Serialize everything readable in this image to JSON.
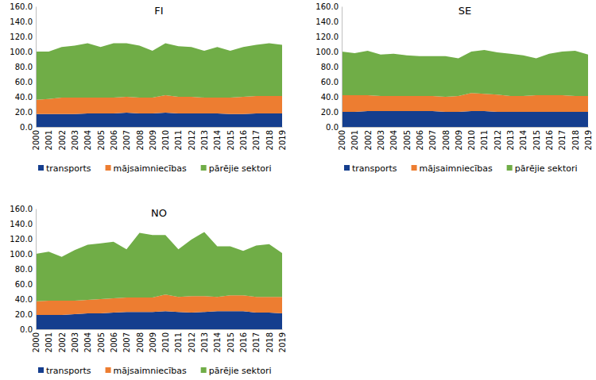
{
  "chart_data": [
    {
      "type": "area",
      "stacked": true,
      "title": "FI",
      "grid": false,
      "legend": "bottom",
      "categories": [
        "2000",
        "2001",
        "2002",
        "2003",
        "2004",
        "2005",
        "2006",
        "2007",
        "2008",
        "2009",
        "2010",
        "2011",
        "2012",
        "2013",
        "2014",
        "2015",
        "2016",
        "2017",
        "2018",
        "2019"
      ],
      "ylim": [
        0,
        160
      ],
      "yticks": [
        {
          "value": 0,
          "label": "0.0"
        },
        {
          "value": 20,
          "label": "20.0"
        },
        {
          "value": 40,
          "label": "40.0"
        },
        {
          "value": 60,
          "label": "60.0"
        },
        {
          "value": 80,
          "label": "80.0"
        },
        {
          "value": 100,
          "label": "100.0"
        },
        {
          "value": 120,
          "label": "120.0"
        },
        {
          "value": 140,
          "label": "140.0"
        },
        {
          "value": 160,
          "label": "160.0"
        }
      ],
      "series": [
        {
          "name": "transports",
          "color": "#153e8e",
          "values": [
            17,
            17,
            17,
            17,
            18,
            18,
            18,
            19,
            18,
            18,
            19,
            18,
            18,
            18,
            18,
            17,
            17,
            18,
            18,
            18
          ]
        },
        {
          "name": "mājsaimniecības",
          "color": "#ed7d31",
          "values": [
            19,
            20,
            22,
            22,
            21,
            21,
            21,
            21,
            21,
            21,
            23,
            22,
            22,
            21,
            21,
            22,
            23,
            23,
            23,
            23
          ]
        },
        {
          "name": "pārējie sektori",
          "color": "#70ad47",
          "values": [
            64,
            63,
            67,
            69,
            72,
            67,
            72,
            71,
            69,
            62,
            69,
            67,
            66,
            62,
            67,
            62,
            66,
            68,
            70,
            68
          ]
        }
      ]
    },
    {
      "type": "area",
      "stacked": true,
      "title": "SE",
      "grid": false,
      "legend": "bottom",
      "categories": [
        "2000",
        "2001",
        "2002",
        "2003",
        "2004",
        "2005",
        "2006",
        "2007",
        "2008",
        "2009",
        "2010",
        "2011",
        "2012",
        "2013",
        "2014",
        "2015",
        "2016",
        "2017",
        "2018",
        "2019"
      ],
      "ylim": [
        0,
        160
      ],
      "yticks": [
        {
          "value": 0,
          "label": "0.0"
        },
        {
          "value": 20,
          "label": "20.0"
        },
        {
          "value": 40,
          "label": "40.0"
        },
        {
          "value": 60,
          "label": "60.0"
        },
        {
          "value": 80,
          "label": "80.0"
        },
        {
          "value": 100,
          "label": "100.0"
        },
        {
          "value": 120,
          "label": "120.0"
        },
        {
          "value": 140,
          "label": "140.0"
        },
        {
          "value": 160,
          "label": "160.0"
        }
      ],
      "series": [
        {
          "name": "transports",
          "color": "#153e8e",
          "values": [
            20,
            20,
            21,
            21,
            21,
            21,
            21,
            21,
            20,
            20,
            21,
            21,
            20,
            20,
            20,
            20,
            20,
            20,
            20,
            20
          ]
        },
        {
          "name": "mājsaimniecības",
          "color": "#ed7d31",
          "values": [
            22,
            22,
            21,
            20,
            20,
            20,
            20,
            20,
            20,
            21,
            24,
            23,
            23,
            21,
            21,
            22,
            22,
            22,
            21,
            21
          ]
        },
        {
          "name": "pārējie sektori",
          "color": "#70ad47",
          "values": [
            58,
            56,
            59,
            55,
            56,
            54,
            53,
            53,
            54,
            50,
            55,
            58,
            56,
            56,
            54,
            49,
            55,
            58,
            60,
            55
          ]
        }
      ]
    },
    {
      "type": "area",
      "stacked": true,
      "title": "NO",
      "grid": false,
      "legend": "bottom",
      "categories": [
        "2000",
        "2001",
        "2002",
        "2003",
        "2004",
        "2005",
        "2006",
        "2007",
        "2008",
        "2009",
        "2010",
        "2011",
        "2012",
        "2013",
        "2014",
        "2015",
        "2016",
        "2017",
        "2018",
        "2019"
      ],
      "ylim": [
        0,
        160
      ],
      "yticks": [
        {
          "value": 0,
          "label": "0.0"
        },
        {
          "value": 20,
          "label": "20.0"
        },
        {
          "value": 40,
          "label": "40.0"
        },
        {
          "value": 60,
          "label": "60.0"
        },
        {
          "value": 80,
          "label": "80.0"
        },
        {
          "value": 100,
          "label": "100.0"
        },
        {
          "value": 120,
          "label": "120.0"
        },
        {
          "value": 140,
          "label": "140.0"
        },
        {
          "value": 160,
          "label": "160.0"
        }
      ],
      "series": [
        {
          "name": "transports",
          "color": "#153e8e",
          "values": [
            19,
            19,
            19,
            20,
            21,
            21,
            22,
            23,
            23,
            23,
            24,
            23,
            22,
            23,
            24,
            24,
            24,
            22,
            22,
            21
          ]
        },
        {
          "name": "mājsaimniecības",
          "color": "#ed7d31",
          "values": [
            18,
            19,
            19,
            18,
            18,
            19,
            19,
            19,
            19,
            19,
            22,
            20,
            22,
            21,
            19,
            21,
            21,
            21,
            21,
            22
          ]
        },
        {
          "name": "pārējie sektori",
          "color": "#70ad47",
          "values": [
            63,
            65,
            58,
            67,
            73,
            74,
            75,
            64,
            86,
            83,
            79,
            63,
            75,
            85,
            67,
            65,
            59,
            68,
            70,
            58
          ]
        }
      ]
    }
  ]
}
